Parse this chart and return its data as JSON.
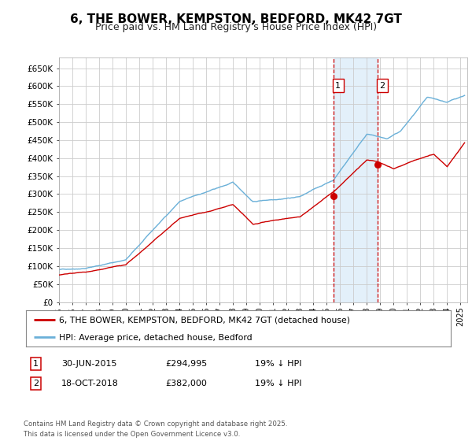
{
  "title": "6, THE BOWER, KEMPSTON, BEDFORD, MK42 7GT",
  "subtitle": "Price paid vs. HM Land Registry's House Price Index (HPI)",
  "title_fontsize": 11,
  "subtitle_fontsize": 9,
  "hpi_color": "#6ab0d8",
  "price_color": "#cc0000",
  "marker_color": "#cc0000",
  "vline_color": "#cc0000",
  "shade_color": "#cce4f7",
  "grid_color": "#cccccc",
  "bg_color": "#ffffff",
  "yticks": [
    0,
    50000,
    100000,
    150000,
    200000,
    250000,
    300000,
    350000,
    400000,
    450000,
    500000,
    550000,
    600000,
    650000
  ],
  "ytick_labels": [
    "£0",
    "£50K",
    "£100K",
    "£150K",
    "£200K",
    "£250K",
    "£300K",
    "£350K",
    "£400K",
    "£450K",
    "£500K",
    "£550K",
    "£600K",
    "£650K"
  ],
  "xmin": 1995.0,
  "xmax": 2025.5,
  "ymin": 0,
  "ymax": 680000,
  "marker1_x": 2015.49,
  "marker1_y": 294995,
  "marker2_x": 2018.79,
  "marker2_y": 382000,
  "vline1_x": 2015.49,
  "vline2_x": 2018.79,
  "legend_label1": "6, THE BOWER, KEMPSTON, BEDFORD, MK42 7GT (detached house)",
  "legend_label2": "HPI: Average price, detached house, Bedford",
  "table_row1": [
    "1",
    "30-JUN-2015",
    "£294,995",
    "19% ↓ HPI"
  ],
  "table_row2": [
    "2",
    "18-OCT-2018",
    "£382,000",
    "19% ↓ HPI"
  ],
  "footer": "Contains HM Land Registry data © Crown copyright and database right 2025.\nThis data is licensed under the Open Government Licence v3.0."
}
